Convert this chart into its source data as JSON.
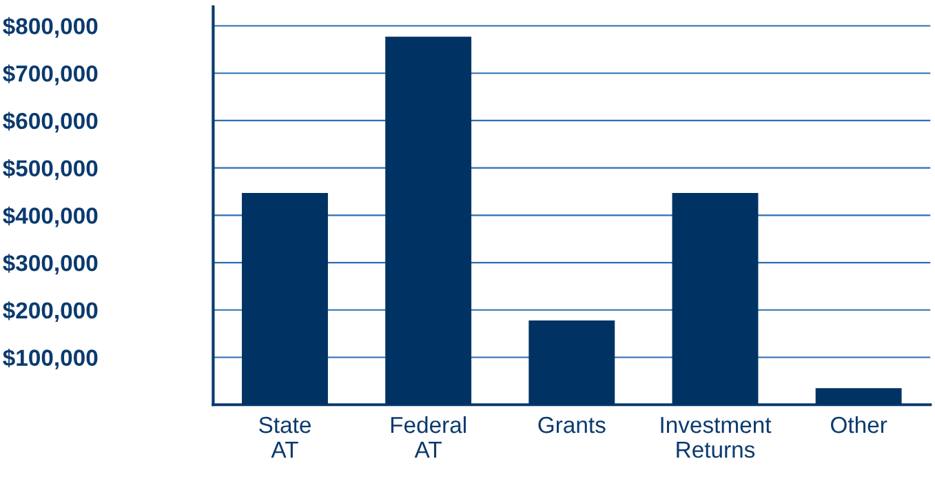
{
  "chart_data": {
    "type": "bar",
    "categories": [
      "State\nAT",
      "Federal\nAT",
      "Grants",
      "Investment\nReturns",
      "Other"
    ],
    "values": [
      447000,
      777000,
      178000,
      447000,
      35000
    ],
    "color": "#003363",
    "ylim": [
      0,
      840000
    ],
    "yticks": [
      {
        "value": 100000,
        "label": "$100,000"
      },
      {
        "value": 200000,
        "label": "$200,000"
      },
      {
        "value": 300000,
        "label": "$300,000"
      },
      {
        "value": 400000,
        "label": "$400,000"
      },
      {
        "value": 500000,
        "label": "$500,000"
      },
      {
        "value": 600000,
        "label": "$600,000"
      },
      {
        "value": 700000,
        "label": "$700,000"
      },
      {
        "value": 800000,
        "label": "$800,000"
      }
    ],
    "grid": "y",
    "legend": false
  }
}
